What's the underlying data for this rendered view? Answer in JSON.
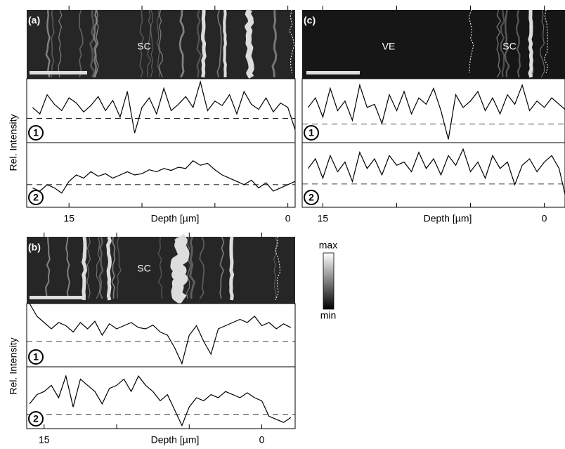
{
  "chart_data": [
    {
      "type": "line",
      "panel_label": "(a)",
      "image_labels": [
        "SC"
      ],
      "x_label": "Depth [µm]",
      "y_label": "Rel. Intensity",
      "xlim": [
        17.9,
        -0.5
      ],
      "xticks": [
        15,
        0
      ],
      "minor_xticks": [
        10,
        5
      ],
      "ylim": [
        0,
        1
      ],
      "x": [
        17.5,
        17,
        16.5,
        16,
        15.5,
        15,
        14.5,
        14,
        13.5,
        13,
        12.5,
        12,
        11.5,
        11,
        10.5,
        10,
        9.5,
        9,
        8.5,
        8,
        7.5,
        7,
        6.5,
        6,
        5.5,
        5,
        4.5,
        4,
        3.5,
        3,
        2.5,
        2,
        1.5,
        1,
        0.5,
        0,
        -0.5
      ],
      "series": [
        {
          "name": "1",
          "color": "#000000",
          "baseline": 0.38,
          "values": [
            0.55,
            0.45,
            0.75,
            0.6,
            0.5,
            0.7,
            0.62,
            0.48,
            0.58,
            0.72,
            0.5,
            0.66,
            0.4,
            0.8,
            0.15,
            0.55,
            0.7,
            0.45,
            0.85,
            0.5,
            0.6,
            0.72,
            0.55,
            0.95,
            0.5,
            0.65,
            0.58,
            0.75,
            0.45,
            0.8,
            0.6,
            0.52,
            0.7,
            0.48,
            0.62,
            0.55,
            0.2
          ]
        },
        {
          "name": "2",
          "color": "#000000",
          "baseline": 0.35,
          "values": [
            0.3,
            0.25,
            0.35,
            0.3,
            0.22,
            0.4,
            0.5,
            0.45,
            0.55,
            0.48,
            0.52,
            0.45,
            0.5,
            0.55,
            0.5,
            0.52,
            0.58,
            0.55,
            0.6,
            0.57,
            0.62,
            0.6,
            0.72,
            0.65,
            0.68,
            0.58,
            0.5,
            0.45,
            0.4,
            0.35,
            0.42,
            0.3,
            0.38,
            0.25,
            0.3,
            0.35,
            0.4
          ]
        }
      ]
    },
    {
      "type": "line",
      "panel_label": "(b)",
      "image_labels": [
        "SC"
      ],
      "x_label": "Depth [µm]",
      "y_label": "Rel. Intensity",
      "xlim": [
        16.2,
        -2.3
      ],
      "xticks": [
        15,
        0
      ],
      "minor_xticks": [
        10,
        5
      ],
      "ylim": [
        0,
        1
      ],
      "x": [
        16,
        15.5,
        15,
        14.5,
        14,
        13.5,
        13,
        12.5,
        12,
        11.5,
        11,
        10.5,
        10,
        9.5,
        9,
        8.5,
        8,
        7.5,
        7,
        6.5,
        6,
        5.5,
        5,
        4.5,
        4,
        3.5,
        3,
        2.5,
        2,
        1.5,
        1,
        0.5,
        0,
        -0.5,
        -1,
        -1.5,
        -2
      ],
      "series": [
        {
          "name": "1",
          "color": "#000000",
          "baseline": 0.4,
          "values": [
            1,
            0.8,
            0.7,
            0.6,
            0.7,
            0.65,
            0.55,
            0.7,
            0.6,
            0.72,
            0.5,
            0.68,
            0.6,
            0.65,
            0.7,
            0.62,
            0.6,
            0.66,
            0.55,
            0.5,
            0.3,
            0.05,
            0.5,
            0.65,
            0.4,
            0.2,
            0.6,
            0.65,
            0.7,
            0.75,
            0.7,
            0.8,
            0.65,
            0.7,
            0.6,
            0.68,
            0.62
          ]
        },
        {
          "name": "2",
          "color": "#000000",
          "baseline": 0.23,
          "values": [
            0.4,
            0.55,
            0.6,
            0.7,
            0.5,
            0.85,
            0.35,
            0.8,
            0.7,
            0.6,
            0.4,
            0.65,
            0.7,
            0.8,
            0.6,
            0.85,
            0.7,
            0.6,
            0.45,
            0.55,
            0.3,
            0.05,
            0.35,
            0.5,
            0.45,
            0.55,
            0.5,
            0.6,
            0.55,
            0.5,
            0.58,
            0.5,
            0.45,
            0.2,
            0.15,
            0.1,
            0.18
          ]
        }
      ]
    },
    {
      "type": "line",
      "panel_label": "(c)",
      "image_labels": [
        "VE",
        "SC"
      ],
      "x_label": "Depth [µm]",
      "xlim": [
        16.4,
        -1.4
      ],
      "xticks": [
        15,
        0
      ],
      "minor_xticks": [
        10,
        5
      ],
      "ylim": [
        0,
        1
      ],
      "x": [
        16,
        15.5,
        15,
        14.5,
        14,
        13.5,
        13,
        12.5,
        12,
        11.5,
        11,
        10.5,
        10,
        9.5,
        9,
        8.5,
        8,
        7.5,
        7,
        6.5,
        6,
        5.5,
        5,
        4.5,
        4,
        3.5,
        3,
        2.5,
        2,
        1.5,
        1,
        0.5,
        0,
        -0.5,
        -1,
        -1.5
      ],
      "series": [
        {
          "name": "1",
          "color": "#000000",
          "baseline": 0.29,
          "values": [
            0.55,
            0.7,
            0.4,
            0.85,
            0.5,
            0.65,
            0.35,
            0.9,
            0.55,
            0.6,
            0.3,
            0.75,
            0.5,
            0.8,
            0.45,
            0.7,
            0.6,
            0.85,
            0.5,
            0.05,
            0.75,
            0.55,
            0.65,
            0.8,
            0.5,
            0.7,
            0.45,
            0.75,
            0.6,
            0.9,
            0.5,
            0.65,
            0.55,
            0.7,
            0.6,
            0.5
          ]
        },
        {
          "name": "2",
          "color": "#000000",
          "baseline": 0.36,
          "values": [
            0.6,
            0.75,
            0.45,
            0.8,
            0.55,
            0.7,
            0.4,
            0.85,
            0.6,
            0.75,
            0.5,
            0.8,
            0.65,
            0.7,
            0.55,
            0.85,
            0.6,
            0.75,
            0.5,
            0.8,
            0.65,
            0.9,
            0.55,
            0.7,
            0.45,
            0.8,
            0.6,
            0.7,
            0.35,
            0.65,
            0.75,
            0.55,
            0.7,
            0.8,
            0.6,
            0.1
          ]
        }
      ]
    }
  ],
  "colorbar": {
    "max_label": "max",
    "min_label": "min"
  }
}
